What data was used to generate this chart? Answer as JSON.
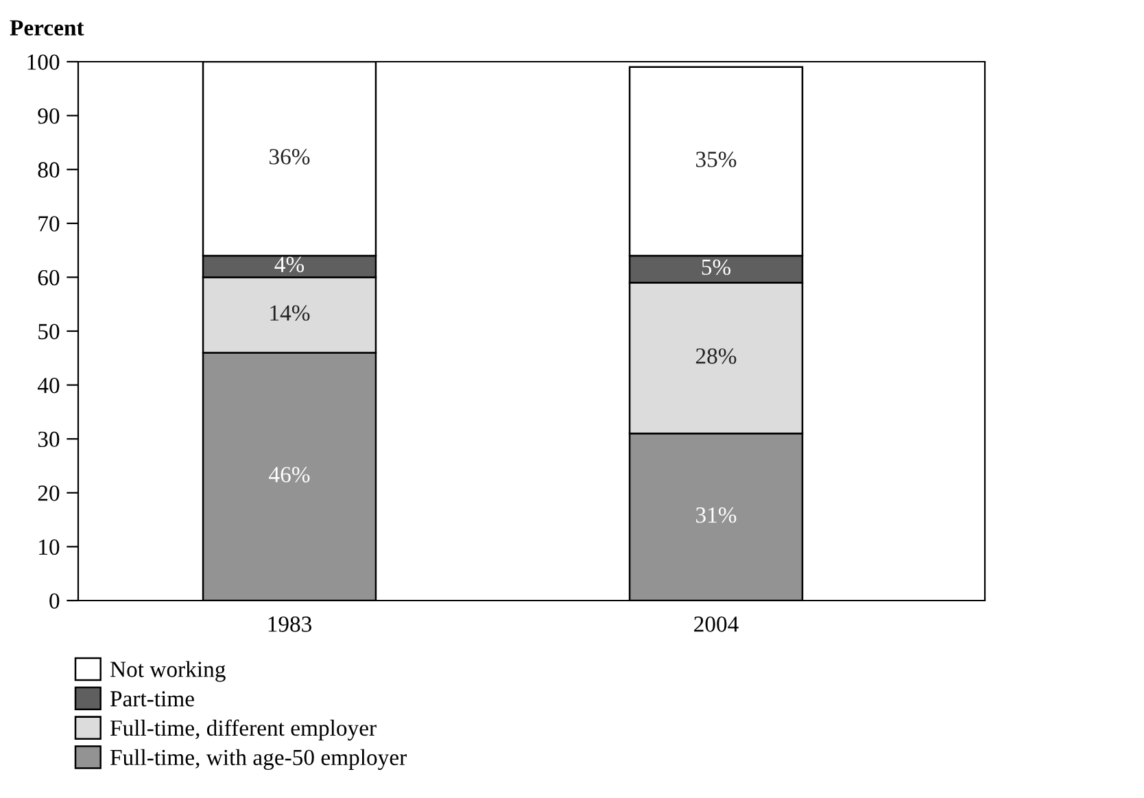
{
  "chart_data": {
    "type": "bar",
    "stacked": true,
    "ylabel": "Percent",
    "categories": [
      "1983",
      "2004"
    ],
    "series": [
      {
        "name": "Full-time, with age-50 employer",
        "color": "#939393",
        "values": [
          46,
          31
        ],
        "value_labels": [
          "46%",
          "31%"
        ]
      },
      {
        "name": "Full-time, different employer",
        "color": "#dcdcdc",
        "values": [
          14,
          28
        ],
        "value_labels": [
          "14%",
          "28%"
        ]
      },
      {
        "name": "Part-time",
        "color": "#5f5f5f",
        "values": [
          4,
          5
        ],
        "value_labels": [
          "4%",
          "5%"
        ]
      },
      {
        "name": "Not working",
        "color": "#ffffff",
        "values": [
          36,
          35
        ],
        "value_labels": [
          "36%",
          "35%"
        ]
      }
    ],
    "ylim": [
      0,
      100
    ],
    "yticks": [
      0,
      10,
      20,
      30,
      40,
      50,
      60,
      70,
      80,
      90,
      100
    ],
    "grid": false,
    "legend": "bottom"
  }
}
